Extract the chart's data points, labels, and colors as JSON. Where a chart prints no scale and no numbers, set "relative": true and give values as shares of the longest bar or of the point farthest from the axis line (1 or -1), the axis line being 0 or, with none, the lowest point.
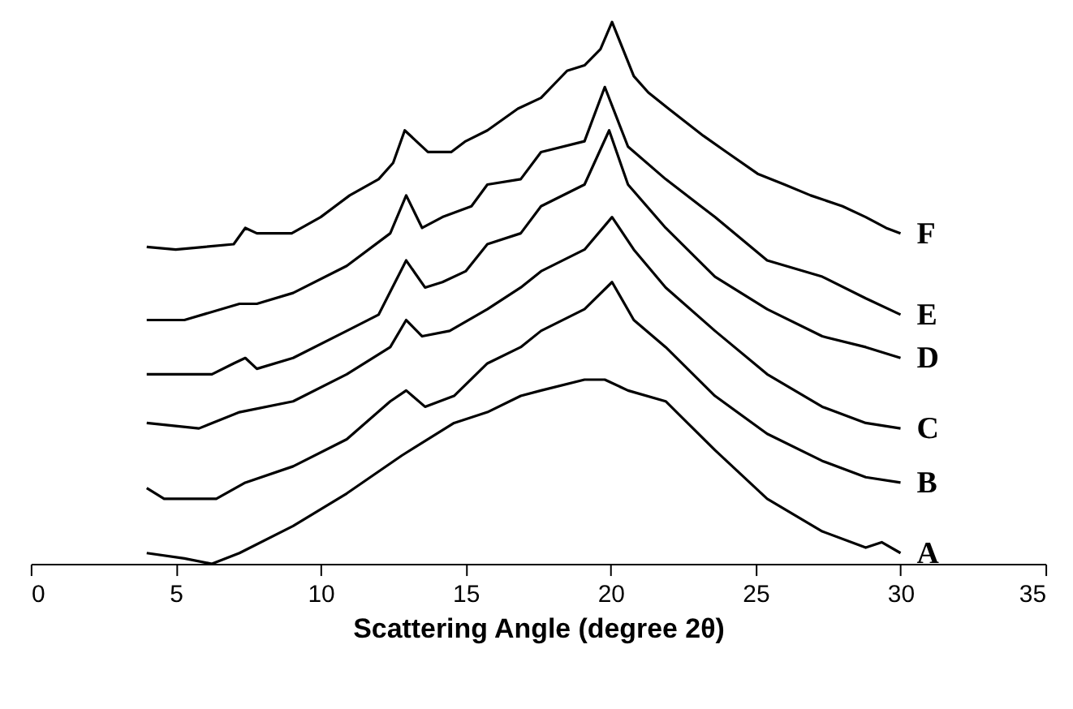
{
  "chart_data": {
    "type": "line",
    "relative": true,
    "xlabel": "Scattering Angle (degree 2θ)",
    "xlim": [
      0,
      35
    ],
    "xticks": [
      0,
      5,
      10,
      15,
      20,
      25,
      30,
      35
    ],
    "grid": false,
    "legend": false,
    "marker": "none",
    "line_style": "solid",
    "series": [
      {
        "name": "F",
        "color": "#000000",
        "x": [
          4,
          5,
          6,
          7,
          7.4,
          7.8,
          9,
          10,
          11,
          12,
          12.5,
          12.9,
          13.3,
          13.7,
          14.5,
          15,
          15.75,
          16.8,
          17.6,
          18.5,
          19.1,
          19.65,
          20.05,
          20.8,
          21.3,
          22,
          23.2,
          24,
          25.07,
          26,
          26.9,
          28,
          28.8,
          29.5,
          30
        ],
        "values": [
          0.585,
          0.58,
          0.585,
          0.59,
          0.62,
          0.61,
          0.61,
          0.64,
          0.68,
          0.71,
          0.74,
          0.8,
          0.78,
          0.76,
          0.76,
          0.78,
          0.8,
          0.84,
          0.86,
          0.91,
          0.92,
          0.95,
          1.0,
          0.9,
          0.87,
          0.84,
          0.79,
          0.76,
          0.72,
          0.7,
          0.68,
          0.66,
          0.64,
          0.62,
          0.61
        ]
      },
      {
        "name": "E",
        "color": "#000000",
        "x": [
          4,
          5.3,
          7.2,
          7.8,
          9.05,
          10.9,
          12.4,
          12.95,
          13.5,
          14.2,
          15.2,
          15.75,
          16.9,
          17.6,
          19.1,
          19.8,
          20.6,
          21.9,
          23.6,
          25.4,
          27.3,
          28.8,
          30
        ],
        "values": [
          0.45,
          0.45,
          0.48,
          0.48,
          0.5,
          0.55,
          0.61,
          0.68,
          0.62,
          0.64,
          0.66,
          0.7,
          0.71,
          0.76,
          0.78,
          0.88,
          0.77,
          0.71,
          0.64,
          0.56,
          0.53,
          0.49,
          0.46
        ]
      },
      {
        "name": "D",
        "color": "#000000",
        "x": [
          4,
          6.25,
          7,
          7.4,
          7.8,
          9.05,
          10.9,
          12,
          12.95,
          13.6,
          14.2,
          15,
          15.75,
          16.9,
          17.6,
          19.1,
          19.95,
          20.6,
          21.9,
          23.6,
          25.4,
          27.3,
          28.8,
          30
        ],
        "values": [
          0.35,
          0.35,
          0.37,
          0.38,
          0.36,
          0.38,
          0.43,
          0.46,
          0.56,
          0.51,
          0.52,
          0.54,
          0.59,
          0.61,
          0.66,
          0.7,
          0.8,
          0.7,
          0.62,
          0.53,
          0.47,
          0.42,
          0.4,
          0.38
        ]
      },
      {
        "name": "C",
        "color": "#000000",
        "x": [
          4,
          5.8,
          7.2,
          9.05,
          10.9,
          12.4,
          12.95,
          13.5,
          14.45,
          15.75,
          16.9,
          17.6,
          19.1,
          20.05,
          20.8,
          21.9,
          23.6,
          25.4,
          27.3,
          28.8,
          30
        ],
        "values": [
          0.26,
          0.25,
          0.28,
          0.3,
          0.35,
          0.4,
          0.45,
          0.42,
          0.43,
          0.47,
          0.51,
          0.54,
          0.58,
          0.64,
          0.58,
          0.51,
          0.43,
          0.35,
          0.29,
          0.26,
          0.25
        ]
      },
      {
        "name": "B",
        "color": "#000000",
        "x": [
          4,
          4.6,
          6.4,
          7.4,
          9.05,
          10.9,
          12.4,
          12.95,
          13.6,
          14.6,
          15.75,
          16.9,
          17.6,
          19.1,
          20.05,
          20.8,
          21.9,
          23.6,
          25.4,
          27.3,
          28.8,
          30
        ],
        "values": [
          0.14,
          0.12,
          0.12,
          0.15,
          0.18,
          0.23,
          0.3,
          0.32,
          0.29,
          0.31,
          0.37,
          0.4,
          0.43,
          0.47,
          0.52,
          0.45,
          0.4,
          0.31,
          0.24,
          0.19,
          0.16,
          0.15
        ]
      },
      {
        "name": "A",
        "color": "#000000",
        "x": [
          4,
          5.3,
          6.25,
          7.2,
          9.05,
          10.9,
          12.8,
          14.6,
          15.75,
          16.9,
          17.6,
          19.1,
          19.8,
          20.6,
          21.9,
          23.6,
          25.4,
          27.3,
          28.8,
          29.35,
          30
        ],
        "values": [
          0.02,
          0.01,
          0.0,
          0.02,
          0.07,
          0.13,
          0.2,
          0.26,
          0.28,
          0.31,
          0.32,
          0.34,
          0.34,
          0.32,
          0.3,
          0.21,
          0.12,
          0.06,
          0.03,
          0.04,
          0.02
        ]
      }
    ]
  }
}
